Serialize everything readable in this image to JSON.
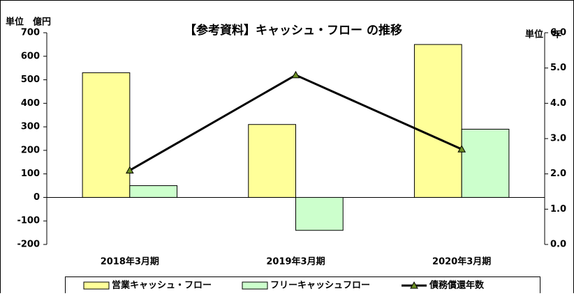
{
  "chart_data": {
    "type": "bar",
    "title": "【参考資料】キャッシュ・フロー の推移",
    "y_unit_label": "単位　億円",
    "y2_unit_label": "単位　年",
    "categories": [
      "2018年3月期",
      "2019年3月期",
      "2020年3月期"
    ],
    "series": [
      {
        "name": "営業キャッシュ・フロー",
        "color": "#ffff99",
        "type": "bar",
        "values": [
          530,
          310,
          650
        ]
      },
      {
        "name": "フリーキャッシュフロー",
        "color": "#ccffcc",
        "type": "bar",
        "values": [
          50,
          -140,
          290
        ]
      },
      {
        "name": "債務償還年数",
        "color": "#000000",
        "marker_color": "#6b8e23",
        "type": "line",
        "axis": "y2",
        "values": [
          2.1,
          4.8,
          2.7
        ]
      }
    ],
    "ylim": [
      -200,
      700
    ],
    "yticks": [
      -200,
      -100,
      0,
      100,
      200,
      300,
      400,
      500,
      600,
      700
    ],
    "y2lim": [
      0,
      6
    ],
    "y2ticks": [
      {
        "value": 0,
        "label": "0.0"
      },
      {
        "value": 1,
        "label": "1.0"
      },
      {
        "value": 2,
        "label": "2.0"
      },
      {
        "value": 3,
        "label": "3.0"
      },
      {
        "value": 4,
        "label": "4.0"
      },
      {
        "value": 5,
        "label": "5.0"
      },
      {
        "value": 6,
        "label": "6.0"
      }
    ],
    "legend": "bottom",
    "grid": false
  }
}
